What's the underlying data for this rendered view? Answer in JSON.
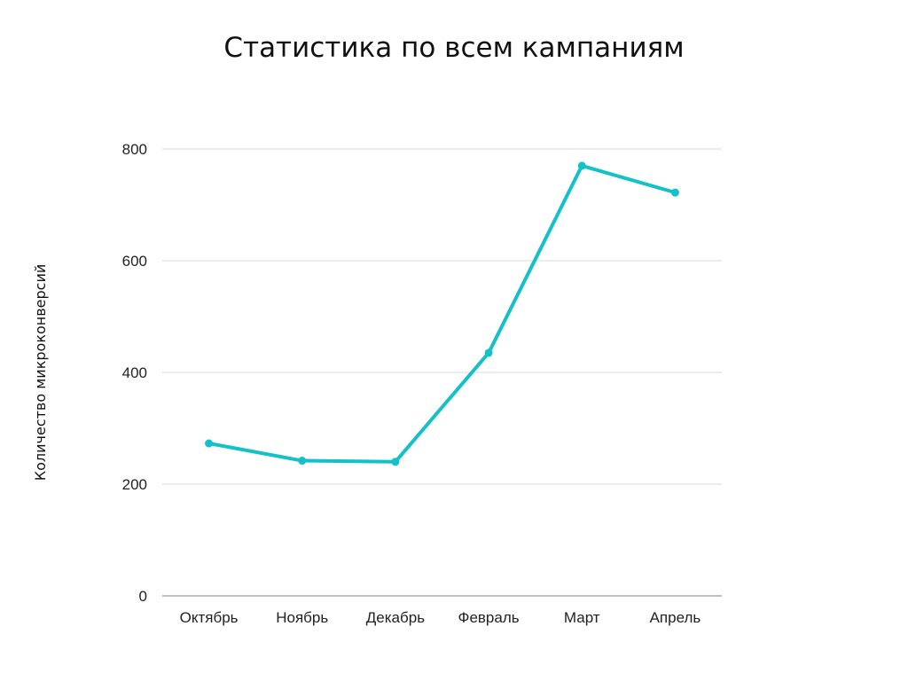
{
  "chart_data": {
    "type": "line",
    "title": "Статистика по всем кампаниям",
    "xlabel": "",
    "ylabel": "Количество микроконверсий",
    "categories": [
      "Октябрь",
      "Ноябрь",
      "Декабрь",
      "Февраль",
      "Март",
      "Апрель"
    ],
    "series": [
      {
        "values": [
          273,
          242,
          240,
          435,
          770,
          722
        ]
      }
    ],
    "ylim": [
      0,
      800
    ],
    "yticks": [
      0,
      200,
      400,
      600,
      800
    ],
    "ytick_labels": [
      "0",
      "200",
      "400",
      "600",
      "800"
    ],
    "grid": true,
    "legend": "none",
    "colors": {
      "line": "#13C2C8",
      "grid": "#D9D9D9",
      "axis": "#AAAAAA"
    }
  }
}
